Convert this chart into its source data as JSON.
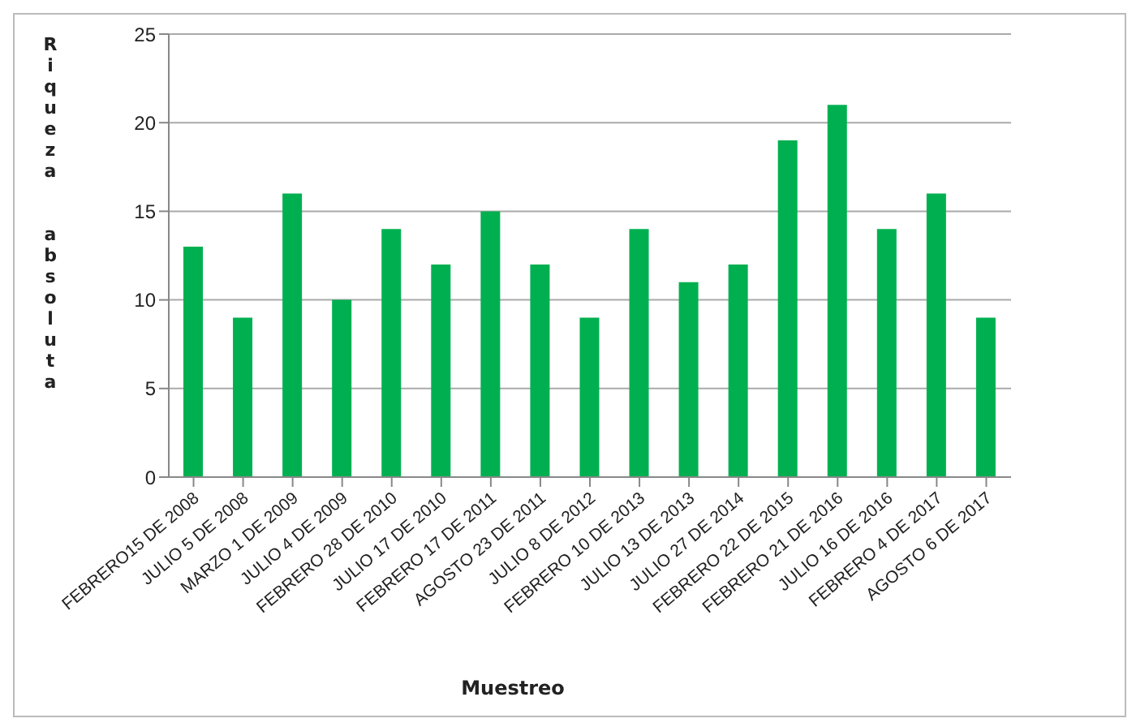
{
  "chart_data": {
    "type": "bar",
    "xlabel": "Muestreo",
    "ylabel": "Riqueza  absoluta",
    "categories": [
      "FEBRERO15 DE 2008",
      "JULIO 5 DE 2008",
      "MARZO 1 DE 2009",
      "JULIO 4 DE 2009",
      "FEBRERO 28 DE 2010",
      "JULIO 17 DE 2010",
      "FEBRERO 17 DE 2011",
      "AGOSTO 23 DE 2011",
      "JULIO 8 DE 2012",
      "FEBRERO 10 DE 2013",
      "JULIO 13 DE 2013",
      "JULIO 27 DE 2014",
      "FEBRERO 22 DE 2015",
      "FEBRERO 21 DE 2016",
      "JULIO 16 DE 2016",
      "FEBRERO 4 DE 2017",
      "AGOSTO 6 DE 2017"
    ],
    "values": [
      13,
      9,
      16,
      10,
      14,
      12,
      15,
      12,
      9,
      14,
      11,
      12,
      19,
      21,
      14,
      16,
      9
    ],
    "color": "#00b050",
    "ylim": [
      0,
      25
    ],
    "yticks": [
      0,
      5,
      10,
      15,
      20,
      25
    ],
    "grid": "y"
  }
}
